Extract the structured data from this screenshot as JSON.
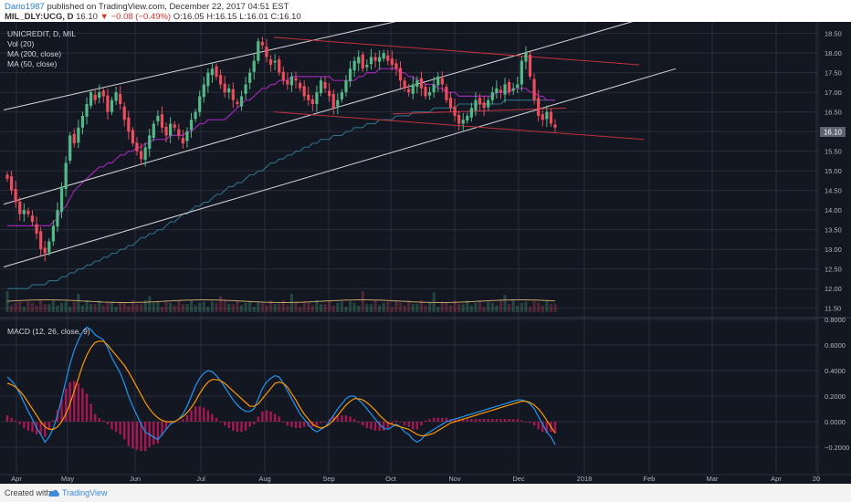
{
  "header": {
    "user": "Dario1987",
    "published_text": "published on TradingView.com, December 22, 2017 04:51 EST",
    "symbol_line": "MIL_DLY:UCG, D",
    "last": "16.10",
    "change": "−0.08 (−0.49%)",
    "ohlc": "O:16.05 H:16.15 L:16.01 C:16.10",
    "down_marker": "▼"
  },
  "legend": {
    "title": "UNICREDIT, D, MIL",
    "vol": "Vol (20)",
    "ma200": "MA (200, close)",
    "ma50": "MA (50, close)",
    "macd": "MACD (12, 26, close, 9)"
  },
  "price_label": "16.10",
  "footer": {
    "created": "Created with",
    "brand": "TradingView"
  },
  "colors": {
    "bg": "#131722",
    "grid": "#2a2e39",
    "up": "#53b987",
    "down": "#eb4d5c",
    "ma50": "#9c27b0",
    "ma200": "#2f6f86",
    "channel": "#d8d8d8",
    "wedge": "#c3313a",
    "macd": "#2196f3",
    "signal": "#ff9800",
    "hist": "#c2185b",
    "volma": "#c8a46a"
  },
  "chart_data": [
    {
      "type": "candlestick",
      "title": "UNICREDIT, D, MIL",
      "x_ticks": [
        "Apr",
        "May",
        "Jun",
        "Jul",
        "Aug",
        "Sep",
        "Oct",
        "Nov",
        "Dec",
        "2018",
        "Feb",
        "Mar",
        "Apr",
        "20"
      ],
      "y_ticks": [
        "18.50",
        "18.00",
        "17.50",
        "17.00",
        "16.50",
        "16.00",
        "15.50",
        "15.00",
        "14.50",
        "14.00",
        "13.50",
        "13.00",
        "12.50",
        "12.00",
        "11.50"
      ],
      "ylim": [
        11.4,
        18.7
      ],
      "close": [
        14.8,
        14.5,
        14.2,
        13.9,
        14.0,
        13.9,
        13.7,
        13.4,
        13.0,
        12.9,
        13.2,
        13.6,
        14.0,
        14.6,
        15.2,
        15.9,
        15.7,
        16.1,
        16.4,
        16.7,
        17.0,
        16.8,
        17.0,
        16.9,
        16.5,
        16.8,
        17.0,
        16.7,
        16.3,
        16.0,
        15.7,
        15.5,
        15.3,
        15.6,
        15.9,
        16.2,
        16.4,
        16.1,
        15.9,
        16.2,
        16.1,
        15.9,
        15.7,
        16.0,
        16.3,
        16.5,
        16.9,
        17.2,
        17.5,
        17.6,
        17.4,
        17.2,
        17.0,
        17.1,
        16.8,
        16.7,
        16.9,
        17.2,
        17.5,
        17.8,
        18.3,
        18.2,
        17.9,
        17.7,
        17.8,
        17.5,
        17.3,
        17.2,
        17.4,
        17.3,
        17.1,
        16.9,
        16.8,
        16.7,
        17.0,
        17.3,
        17.1,
        16.9,
        16.6,
        16.8,
        17.0,
        17.3,
        17.6,
        17.8,
        17.9,
        17.6,
        17.7,
        17.9,
        17.8,
        17.9,
        18.0,
        17.8,
        17.7,
        17.6,
        17.3,
        17.1,
        17.0,
        17.2,
        17.3,
        17.1,
        16.9,
        17.0,
        17.2,
        17.4,
        17.2,
        16.8,
        16.6,
        16.4,
        16.2,
        16.3,
        16.4,
        16.6,
        16.8,
        16.7,
        16.6,
        16.8,
        17.0,
        17.1,
        17.0,
        17.2,
        17.0,
        17.1,
        17.2,
        17.8,
        18.0,
        17.4,
        16.8,
        16.4,
        16.3,
        16.5,
        16.2,
        16.1
      ],
      "ma50": [
        13.6,
        13.6,
        13.6,
        13.6,
        13.6,
        13.6,
        13.6,
        13.6,
        13.6,
        13.6,
        13.6,
        13.7,
        13.8,
        14.0,
        14.1,
        14.3,
        14.5,
        14.6,
        14.7,
        14.8,
        14.9,
        15.0,
        15.1,
        15.1,
        15.2,
        15.2,
        15.3,
        15.4,
        15.4,
        15.5,
        15.5,
        15.6,
        15.6,
        15.7,
        15.7,
        15.8,
        15.8,
        15.8,
        15.8,
        15.9,
        15.9,
        15.9,
        15.9,
        16.0,
        16.0,
        16.1,
        16.2,
        16.2,
        16.3,
        16.3,
        16.3,
        16.3,
        16.3,
        16.4,
        16.5,
        16.6,
        16.7,
        16.8,
        16.8,
        16.9,
        17.0,
        17.1,
        17.1,
        17.2,
        17.2,
        17.3,
        17.3,
        17.3,
        17.4,
        17.4,
        17.4,
        17.4,
        17.4,
        17.4,
        17.4,
        17.4,
        17.4,
        17.4,
        17.3,
        17.3,
        17.3,
        17.3,
        17.3,
        17.3,
        17.4,
        17.4,
        17.5,
        17.5,
        17.5,
        17.6,
        17.6,
        17.6,
        17.6,
        17.6,
        17.5,
        17.5,
        17.4,
        17.4,
        17.3,
        17.3,
        17.2,
        17.2,
        17.2,
        17.1,
        17.1,
        17.0,
        17.0,
        17.0,
        16.9,
        16.9,
        16.9,
        16.9,
        16.9,
        16.9,
        16.9,
        16.9,
        16.9,
        17.0,
        17.0,
        17.0,
        17.0,
        17.1,
        17.1,
        17.1,
        17.1,
        17.0,
        17.0,
        16.9,
        16.9,
        16.8,
        16.8,
        16.8
      ],
      "ma200": [
        12.0,
        12.0,
        12.0,
        12.0,
        12.0,
        12.0,
        12.1,
        12.1,
        12.1,
        12.1,
        12.2,
        12.2,
        12.2,
        12.3,
        12.3,
        12.4,
        12.4,
        12.5,
        12.5,
        12.6,
        12.6,
        12.7,
        12.7,
        12.8,
        12.8,
        12.9,
        12.9,
        13.0,
        13.0,
        13.1,
        13.1,
        13.2,
        13.3,
        13.3,
        13.4,
        13.4,
        13.5,
        13.5,
        13.6,
        13.7,
        13.7,
        13.8,
        13.9,
        13.9,
        14.0,
        14.1,
        14.1,
        14.2,
        14.2,
        14.3,
        14.4,
        14.4,
        14.5,
        14.6,
        14.6,
        14.7,
        14.7,
        14.8,
        14.9,
        14.9,
        15.0,
        15.0,
        15.1,
        15.2,
        15.2,
        15.3,
        15.3,
        15.4,
        15.4,
        15.5,
        15.5,
        15.6,
        15.6,
        15.7,
        15.7,
        15.8,
        15.8,
        15.8,
        15.9,
        15.9,
        15.9,
        16.0,
        16.0,
        16.1,
        16.1,
        16.1,
        16.2,
        16.2,
        16.2,
        16.3,
        16.3,
        16.3,
        16.3,
        16.4,
        16.4,
        16.4,
        16.4,
        16.5,
        16.5,
        16.5,
        16.5,
        16.5,
        16.6,
        16.6,
        16.6,
        16.6,
        16.6,
        16.6,
        16.7,
        16.7,
        16.7,
        16.7,
        16.7,
        16.7,
        16.7,
        16.7,
        16.7,
        16.7,
        16.7,
        16.8,
        16.8,
        16.8,
        16.8,
        16.8,
        16.8,
        16.8,
        16.8,
        16.8,
        16.8,
        16.8,
        16.8,
        16.8
      ]
    },
    {
      "type": "line",
      "title": "MACD (12, 26, close, 9)",
      "y_ticks": [
        "0.8000",
        "0.6000",
        "0.4000",
        "0.2000",
        "0.0000",
        "−0.2000"
      ],
      "ylim": [
        -0.4,
        0.8
      ],
      "macd": [
        0.35,
        0.32,
        0.28,
        0.22,
        0.15,
        0.08,
        0.02,
        -0.05,
        -0.1,
        -0.16,
        -0.12,
        -0.05,
        0.05,
        0.18,
        0.32,
        0.45,
        0.56,
        0.64,
        0.7,
        0.74,
        0.72,
        0.68,
        0.66,
        0.64,
        0.58,
        0.5,
        0.44,
        0.38,
        0.3,
        0.2,
        0.12,
        0.05,
        -0.02,
        -0.08,
        -0.1,
        -0.12,
        -0.14,
        -0.1,
        -0.06,
        -0.02,
        0.0,
        0.02,
        0.06,
        0.12,
        0.2,
        0.28,
        0.34,
        0.38,
        0.4,
        0.39,
        0.36,
        0.32,
        0.27,
        0.22,
        0.17,
        0.13,
        0.1,
        0.08,
        0.08,
        0.1,
        0.18,
        0.26,
        0.31,
        0.34,
        0.36,
        0.35,
        0.3,
        0.24,
        0.18,
        0.12,
        0.06,
        0.02,
        -0.02,
        -0.06,
        -0.08,
        -0.06,
        -0.04,
        0.0,
        0.05,
        0.1,
        0.14,
        0.18,
        0.2,
        0.2,
        0.17,
        0.14,
        0.1,
        0.06,
        0.02,
        -0.02,
        -0.05,
        -0.06,
        -0.04,
        -0.02,
        -0.04,
        -0.08,
        -0.1,
        -0.14,
        -0.16,
        -0.14,
        -0.1,
        -0.08,
        -0.06,
        -0.04,
        -0.02,
        0.0,
        0.01,
        0.02,
        0.03,
        0.04,
        0.05,
        0.06,
        0.07,
        0.08,
        0.09,
        0.1,
        0.11,
        0.12,
        0.13,
        0.14,
        0.15,
        0.16,
        0.17,
        0.17,
        0.16,
        0.14,
        0.1,
        0.04,
        -0.02,
        -0.08,
        -0.12,
        -0.18
      ],
      "signal": [
        0.3,
        0.29,
        0.27,
        0.24,
        0.2,
        0.15,
        0.1,
        0.05,
        0.0,
        -0.04,
        -0.06,
        -0.06,
        -0.04,
        0.0,
        0.06,
        0.14,
        0.24,
        0.34,
        0.44,
        0.52,
        0.58,
        0.62,
        0.63,
        0.63,
        0.6,
        0.56,
        0.52,
        0.48,
        0.44,
        0.39,
        0.33,
        0.27,
        0.21,
        0.15,
        0.1,
        0.06,
        0.03,
        0.01,
        0.0,
        0.0,
        0.0,
        0.02,
        0.04,
        0.07,
        0.11,
        0.16,
        0.22,
        0.27,
        0.31,
        0.33,
        0.33,
        0.32,
        0.3,
        0.27,
        0.24,
        0.21,
        0.18,
        0.15,
        0.12,
        0.12,
        0.14,
        0.18,
        0.22,
        0.26,
        0.3,
        0.31,
        0.3,
        0.27,
        0.22,
        0.17,
        0.11,
        0.06,
        0.02,
        -0.02,
        -0.04,
        -0.05,
        -0.04,
        -0.02,
        0.01,
        0.05,
        0.09,
        0.13,
        0.16,
        0.18,
        0.18,
        0.17,
        0.15,
        0.12,
        0.09,
        0.05,
        0.02,
        -0.01,
        -0.02,
        -0.03,
        -0.04,
        -0.05,
        -0.06,
        -0.08,
        -0.1,
        -0.11,
        -0.11,
        -0.1,
        -0.09,
        -0.07,
        -0.05,
        -0.03,
        -0.01,
        0.0,
        0.01,
        0.02,
        0.03,
        0.04,
        0.05,
        0.06,
        0.07,
        0.08,
        0.09,
        0.1,
        0.11,
        0.12,
        0.13,
        0.14,
        0.15,
        0.16,
        0.16,
        0.15,
        0.13,
        0.1,
        0.06,
        0.01,
        -0.04,
        -0.09
      ]
    }
  ]
}
